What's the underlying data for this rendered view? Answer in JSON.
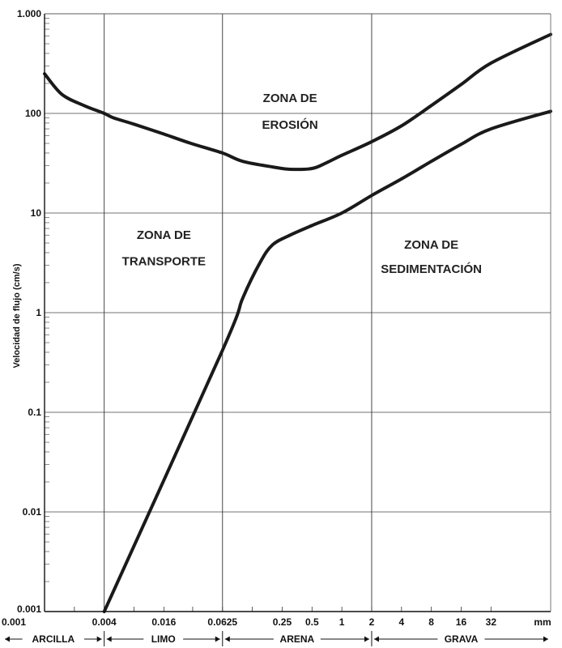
{
  "chart_data": {
    "type": "line",
    "title": "",
    "xlabel": "",
    "ylabel": "Velocidad de flujo (cm/s)",
    "x_scale": "log",
    "y_scale": "log",
    "xlim": [
      0.001,
      128
    ],
    "ylim": [
      0.001,
      1000
    ],
    "grid": true,
    "x_unit": "mm",
    "y_ticks": [
      {
        "value": 0.001,
        "label": "0.001"
      },
      {
        "value": 0.01,
        "label": "0.01"
      },
      {
        "value": 0.1,
        "label": "0.1"
      },
      {
        "value": 1,
        "label": "1"
      },
      {
        "value": 10,
        "label": "10"
      },
      {
        "value": 100,
        "label": "100"
      },
      {
        "value": 1000,
        "label": "1.000"
      }
    ],
    "x_ticks": [
      {
        "value": 0.001,
        "label": "0.001"
      },
      {
        "value": 0.004,
        "label": "0.004"
      },
      {
        "value": 0.016,
        "label": "0.016"
      },
      {
        "value": 0.0625,
        "label": "0.0625"
      },
      {
        "value": 0.25,
        "label": "0.25"
      },
      {
        "value": 0.5,
        "label": "0.5"
      },
      {
        "value": 1,
        "label": "1"
      },
      {
        "value": 2,
        "label": "2"
      },
      {
        "value": 4,
        "label": "4"
      },
      {
        "value": 8,
        "label": "8"
      },
      {
        "value": 16,
        "label": "16"
      },
      {
        "value": 32,
        "label": "32"
      }
    ],
    "x_minor_ticks": [
      0.002,
      0.008,
      0.03125,
      0.125
    ],
    "major_x_gridlines": [
      0.004,
      0.0625,
      2
    ],
    "series": [
      {
        "points": [
          [
            0.001,
            250
          ],
          [
            0.0015,
            155
          ],
          [
            0.0025,
            120
          ],
          [
            0.004,
            100
          ],
          [
            0.005,
            90
          ],
          [
            0.008,
            78
          ],
          [
            0.016,
            62
          ],
          [
            0.03,
            50
          ],
          [
            0.0625,
            40
          ],
          [
            0.1,
            33
          ],
          [
            0.2,
            29
          ],
          [
            0.3,
            27.5
          ],
          [
            0.5,
            28
          ],
          [
            0.7,
            32
          ],
          [
            1,
            38
          ],
          [
            2,
            52
          ],
          [
            4,
            75
          ],
          [
            8,
            120
          ],
          [
            16,
            195
          ],
          [
            32,
            320
          ],
          [
            128,
            620
          ]
        ]
      },
      {
        "points": [
          [
            0.004,
            0.001
          ],
          [
            0.0625,
            0.42
          ],
          [
            0.1,
            1.4
          ],
          [
            0.15,
            3.2
          ],
          [
            0.2,
            4.8
          ],
          [
            0.3,
            6
          ],
          [
            0.5,
            7.5
          ],
          [
            1,
            10
          ],
          [
            2,
            15
          ],
          [
            4,
            22
          ],
          [
            8,
            33
          ],
          [
            16,
            49
          ],
          [
            32,
            70
          ],
          [
            128,
            105
          ]
        ]
      }
    ],
    "annotations": [
      {
        "id": "erosion",
        "lines": [
          "ZONA DE",
          "EROSIÓN"
        ],
        "x": 0.3,
        "y_lines": [
          130,
          70
        ]
      },
      {
        "id": "transporte",
        "lines": [
          "ZONA DE",
          "TRANSPORTE"
        ],
        "x": 0.016,
        "y_lines": [
          5.5,
          3.0
        ]
      },
      {
        "id": "sedimentacion",
        "lines": [
          "ZONA DE",
          "SEDIMENTACIÓN"
        ],
        "x": 8,
        "y_lines": [
          4.4,
          2.5
        ]
      }
    ],
    "size_classes": [
      {
        "label": "ARCILLA",
        "from": 0.001,
        "to": 0.004
      },
      {
        "label": "LIMO",
        "from": 0.004,
        "to": 0.0625
      },
      {
        "label": "ARENA",
        "from": 0.0625,
        "to": 2
      },
      {
        "label": "GRAVA",
        "from": 2,
        "to": 128
      }
    ]
  }
}
